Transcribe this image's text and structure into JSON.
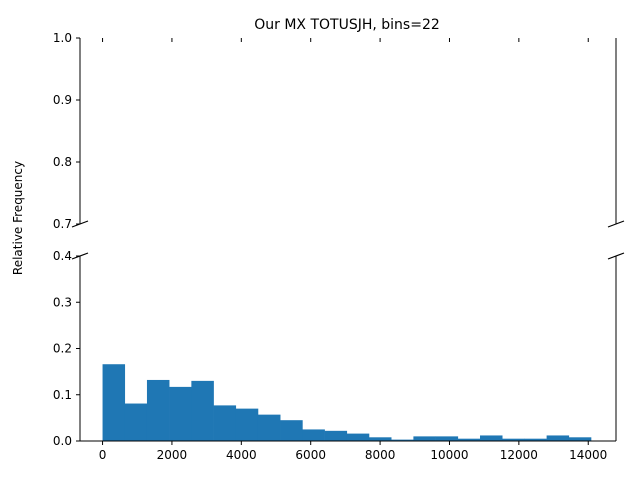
{
  "chart_data": {
    "type": "bar",
    "title": "Our MX TOTUSJH, bins=22",
    "xlabel": "",
    "ylabel": "Relative Frequency",
    "bar_color": "#1f77b4",
    "broken_y_axis": true,
    "top_panel": {
      "ylim": [
        0.7,
        1.0
      ],
      "yticks": [
        0.7,
        0.8,
        0.9,
        1.0
      ],
      "ytick_labels": [
        "0.7",
        "0.8",
        "0.9",
        "1.0"
      ]
    },
    "bottom_panel": {
      "ylim": [
        0.0,
        0.4
      ],
      "yticks": [
        0.0,
        0.1,
        0.2,
        0.3,
        0.4
      ],
      "ytick_labels": [
        "0.0",
        "0.1",
        "0.2",
        "0.3",
        "0.4"
      ]
    },
    "xlim": [
      -650,
      14800
    ],
    "xticks": [
      0,
      2000,
      4000,
      6000,
      8000,
      10000,
      12000,
      14000
    ],
    "xtick_labels": [
      "0",
      "2000",
      "4000",
      "6000",
      "8000",
      "10000",
      "12000",
      "14000"
    ],
    "bins": {
      "edges": [
        0,
        640,
        1280,
        1920,
        2560,
        3200,
        3840,
        4480,
        5120,
        5760,
        6400,
        7040,
        7680,
        8320,
        8960,
        9600,
        10240,
        10880,
        11520,
        12160,
        12800,
        13440,
        14080
      ],
      "values": [
        0.166,
        0.081,
        0.132,
        0.117,
        0.13,
        0.077,
        0.07,
        0.057,
        0.045,
        0.025,
        0.022,
        0.016,
        0.008,
        0.003,
        0.01,
        0.01,
        0.005,
        0.012,
        0.005,
        0.005,
        0.012,
        0.008
      ]
    }
  }
}
